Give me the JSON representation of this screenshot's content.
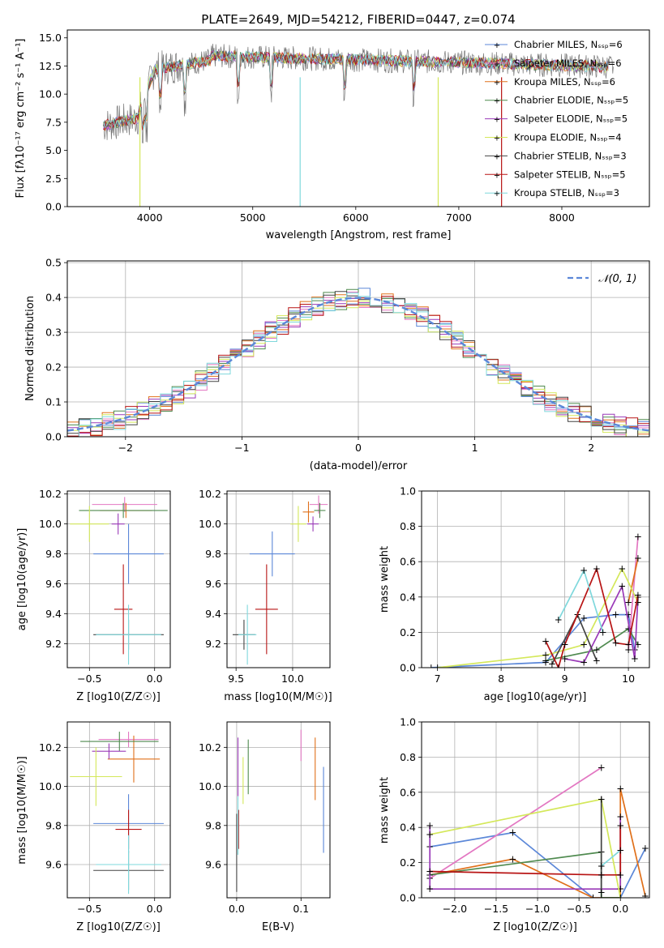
{
  "chart_data": [
    {
      "type": "line",
      "title": "PLATE=2649, MJD=54212, FIBERID=0447, z=0.074",
      "xlabel": "wavelength [Angstrom, rest frame]",
      "ylabel": "Flux [fλ10⁻¹⁷ erg cm⁻² s⁻¹ A⁻¹]",
      "xlim": [
        3200,
        8850
      ],
      "ylim": [
        0,
        15.7
      ],
      "xticks": [
        4000,
        5000,
        6000,
        7000,
        8000
      ],
      "yticks": [
        0.0,
        2.5,
        5.0,
        7.5,
        10.0,
        12.5,
        15.0
      ],
      "grid": false,
      "legend_position": "top-right",
      "series": [
        {
          "name": "Chabrier MILES, N_SSP=6",
          "color": "#5b87d8"
        },
        {
          "name": "Salpeter MILES, N_SSP=6",
          "color": "#e377c2"
        },
        {
          "name": "Kroupa MILES, N_SSP=6",
          "color": "#e0701a"
        },
        {
          "name": "Chabrier ELODIE, N_SSP=5",
          "color": "#4f8a4f"
        },
        {
          "name": "Salpeter ELODIE, N_SSP=5",
          "color": "#9a3ab8"
        },
        {
          "name": "Kroupa ELODIE, N_SSP=4",
          "color": "#d4e85a"
        },
        {
          "name": "Chabrier STELIB, N_SSP=3",
          "color": "#444444"
        },
        {
          "name": "Salpeter STELIB, N_SSP=5",
          "color": "#b81414"
        },
        {
          "name": "Kroupa STELIB, N_SSP=3",
          "color": "#7fd8dc"
        }
      ]
    },
    {
      "type": "line",
      "xlabel": "(data-model)/error",
      "ylabel": "Normed distribution",
      "xlim": [
        -2.5,
        2.5
      ],
      "ylim": [
        0,
        0.505
      ],
      "xticks": [
        -2,
        -1,
        0,
        1,
        2
      ],
      "yticks": [
        0.0,
        0.1,
        0.2,
        0.3,
        0.4,
        0.5
      ],
      "grid": true,
      "legend_position": "top-right",
      "legend": "𝒩(0, 1)",
      "curve": "normal pdf mean 0, sigma 1"
    },
    {
      "type": "scatter",
      "xlabel": "Z [log10(Z/Z☉)]",
      "ylabel": "age [log10(age/yr)]",
      "xlim": [
        -0.67,
        0.12
      ],
      "ylim": [
        9.04,
        10.22
      ],
      "xticks": [
        -0.5,
        0.0
      ],
      "yticks": [
        9.2,
        9.4,
        9.6,
        9.8,
        10.0,
        10.2
      ],
      "grid": true,
      "points": [
        {
          "series": "Chabrier MILES",
          "x": -0.2,
          "y": 9.8,
          "xerr": 0.27,
          "yerr": 0.2
        },
        {
          "series": "Salpeter MILES",
          "x": -0.23,
          "y": 10.13,
          "xerr": 0.25,
          "yerr": 0.05
        },
        {
          "series": "Kroupa MILES",
          "x": -0.22,
          "y": 10.09,
          "xerr": 0.2,
          "yerr": 0.05
        },
        {
          "series": "Chabrier ELODIE",
          "x": -0.24,
          "y": 10.09,
          "xerr": 0.34,
          "yerr": 0.05
        },
        {
          "series": "Salpeter ELODIE",
          "x": -0.28,
          "y": 10.0,
          "xerr": 0.05,
          "yerr": 0.07
        },
        {
          "series": "Kroupa ELODIE",
          "x": -0.5,
          "y": 10.0,
          "xerr": 0.15,
          "yerr": 0.12
        },
        {
          "series": "Chabrier STELIB",
          "x": -0.2,
          "y": 9.26,
          "xerr": 0.27,
          "yerr": 0.1
        },
        {
          "series": "Salpeter STELIB",
          "x": -0.24,
          "y": 9.43,
          "xerr": 0.07,
          "yerr": 0.3
        },
        {
          "series": "Kroupa STELIB",
          "x": -0.2,
          "y": 9.26,
          "xerr": 0.25,
          "yerr": 0.2
        }
      ]
    },
    {
      "type": "scatter",
      "xlabel": "mass [log10(M/M☉)]",
      "xlim": [
        9.42,
        10.33
      ],
      "ylim": [
        9.04,
        10.22
      ],
      "xticks": [
        9.5,
        10.0
      ],
      "yticks": [
        9.2,
        9.4,
        9.6,
        9.8,
        10.0,
        10.2
      ],
      "grid": true,
      "points": [
        {
          "series": "Chabrier MILES",
          "x": 9.82,
          "y": 9.8,
          "xerr": 0.2,
          "yerr": 0.15
        },
        {
          "series": "Salpeter MILES",
          "x": 10.23,
          "y": 10.13,
          "xerr": 0.08,
          "yerr": 0.06
        },
        {
          "series": "Kroupa MILES",
          "x": 10.14,
          "y": 10.08,
          "xerr": 0.05,
          "yerr": 0.07
        },
        {
          "series": "Chabrier ELODIE",
          "x": 10.24,
          "y": 10.09,
          "xerr": 0.05,
          "yerr": 0.05
        },
        {
          "series": "Salpeter ELODIE",
          "x": 10.18,
          "y": 10.0,
          "xerr": 0.05,
          "yerr": 0.05
        },
        {
          "series": "Kroupa ELODIE",
          "x": 10.05,
          "y": 10.0,
          "xerr": 0.07,
          "yerr": 0.12
        },
        {
          "series": "Chabrier STELIB",
          "x": 9.57,
          "y": 9.26,
          "xerr": 0.1,
          "yerr": 0.1
        },
        {
          "series": "Salpeter STELIB",
          "x": 9.77,
          "y": 9.43,
          "xerr": 0.1,
          "yerr": 0.3
        },
        {
          "series": "Kroupa STELIB",
          "x": 9.6,
          "y": 9.26,
          "xerr": 0.08,
          "yerr": 0.2
        }
      ]
    },
    {
      "type": "line",
      "xlabel": "age [log10(age/yr)]",
      "ylabel": "mass weight",
      "xlim": [
        6.75,
        10.33
      ],
      "ylim": [
        0,
        1.0
      ],
      "xticks": [
        7,
        8,
        9,
        10
      ],
      "yticks": [
        0.0,
        0.2,
        0.4,
        0.6,
        0.8,
        1.0
      ],
      "grid": true,
      "series": [
        {
          "name": "Chabrier MILES",
          "x": [
            6.9,
            8.7,
            9.3,
            9.8,
            10.0,
            10.1
          ],
          "y": [
            0.0,
            0.03,
            0.28,
            0.3,
            0.3,
            0.1
          ]
        },
        {
          "name": "Salpeter MILES",
          "x": [
            10.0,
            10.15
          ],
          "y": [
            0.1,
            0.74
          ]
        },
        {
          "name": "Kroupa MILES",
          "x": [
            10.0,
            10.15
          ],
          "y": [
            0.37,
            0.62
          ]
        },
        {
          "name": "Chabrier ELODIE",
          "x": [
            8.7,
            9.5,
            10.0,
            10.15
          ],
          "y": [
            0.04,
            0.1,
            0.22,
            0.13
          ]
        },
        {
          "name": "Salpeter ELODIE",
          "x": [
            9.0,
            9.3,
            9.9,
            10.1,
            10.15
          ],
          "y": [
            0.05,
            0.03,
            0.46,
            0.05,
            0.4
          ]
        },
        {
          "name": "Kroupa ELODIE",
          "x": [
            7.0,
            8.7,
            9.3,
            9.9,
            10.15
          ],
          "y": [
            0.0,
            0.07,
            0.13,
            0.56,
            0.37
          ]
        },
        {
          "name": "Chabrier STELIB",
          "x": [
            8.8,
            9.2,
            9.5
          ],
          "y": [
            0.02,
            0.3,
            0.04
          ]
        },
        {
          "name": "Salpeter STELIB",
          "x": [
            8.7,
            8.9,
            9.0,
            9.5,
            9.8,
            10.0,
            10.15
          ],
          "y": [
            0.15,
            0.0,
            0.13,
            0.56,
            0.14,
            0.13,
            0.41
          ]
        },
        {
          "name": "Kroupa STELIB",
          "x": [
            8.9,
            9.3,
            9.6
          ],
          "y": [
            0.27,
            0.55,
            0.2
          ]
        }
      ]
    },
    {
      "type": "scatter",
      "xlabel": "Z [log10(Z/Z☉)]",
      "ylabel": "mass [log10(M/M☉)]",
      "xlim": [
        -0.67,
        0.12
      ],
      "ylim": [
        9.43,
        10.33
      ],
      "xticks": [
        -0.5,
        0.0
      ],
      "yticks": [
        9.6,
        9.8,
        10.0,
        10.2
      ],
      "grid": true,
      "points": [
        {
          "series": "Chabrier MILES",
          "x": -0.2,
          "y": 9.81,
          "xerr": 0.27,
          "yerr": 0.15
        },
        {
          "series": "Salpeter MILES",
          "x": -0.2,
          "y": 10.24,
          "xerr": 0.23,
          "yerr": 0.04
        },
        {
          "series": "Kroupa MILES",
          "x": -0.16,
          "y": 10.14,
          "xerr": 0.2,
          "yerr": 0.12
        },
        {
          "series": "Chabrier ELODIE",
          "x": -0.27,
          "y": 10.23,
          "xerr": 0.3,
          "yerr": 0.05
        },
        {
          "series": "Salpeter ELODIE",
          "x": -0.35,
          "y": 10.18,
          "xerr": 0.13,
          "yerr": 0.04
        },
        {
          "series": "Kroupa ELODIE",
          "x": -0.45,
          "y": 10.05,
          "xerr": 0.2,
          "yerr": 0.15
        },
        {
          "series": "Chabrier STELIB",
          "x": -0.2,
          "y": 9.57,
          "xerr": 0.27,
          "yerr": 0.1
        },
        {
          "series": "Salpeter STELIB",
          "x": -0.2,
          "y": 9.78,
          "xerr": 0.1,
          "yerr": 0.1
        },
        {
          "series": "Kroupa STELIB",
          "x": -0.2,
          "y": 9.6,
          "xerr": 0.25,
          "yerr": 0.15
        }
      ]
    },
    {
      "type": "scatter",
      "xlabel": "E(B-V)",
      "xlim": [
        -0.015,
        0.145
      ],
      "ylim": [
        9.43,
        10.33
      ],
      "xticks": [
        0.0,
        0.1
      ],
      "yticks": [
        9.6,
        9.8,
        10.0,
        10.2
      ],
      "grid": true,
      "points": [
        {
          "series": "Chabrier MILES",
          "x": 0.135,
          "y": 9.88,
          "yerr": 0.22
        },
        {
          "series": "Salpeter MILES",
          "x": 0.1,
          "y": 10.21,
          "yerr": 0.08
        },
        {
          "series": "Kroupa MILES",
          "x": 0.122,
          "y": 10.09,
          "yerr": 0.16
        },
        {
          "series": "Chabrier ELODIE",
          "x": 0.018,
          "y": 10.1,
          "yerr": 0.14
        },
        {
          "series": "Salpeter ELODIE",
          "x": 0.002,
          "y": 10.1,
          "yerr": 0.15
        },
        {
          "series": "Kroupa ELODIE",
          "x": 0.01,
          "y": 10.03,
          "yerr": 0.12
        },
        {
          "series": "Chabrier STELIB",
          "x": 0.0,
          "y": 9.66,
          "yerr": 0.2
        },
        {
          "series": "Salpeter STELIB",
          "x": 0.003,
          "y": 9.78,
          "yerr": 0.1
        },
        {
          "series": "Kroupa STELIB",
          "x": 0.002,
          "y": 9.8,
          "yerr": 0.15
        }
      ]
    },
    {
      "type": "line",
      "xlabel": "Z [log10(Z/Z☉)]",
      "ylabel": "mass weight",
      "xlim": [
        -2.4,
        0.35
      ],
      "ylim": [
        0,
        1.0
      ],
      "xticks": [
        -2.0,
        -1.5,
        -1.0,
        -0.5,
        0.0
      ],
      "yticks": [
        0.0,
        0.2,
        0.4,
        0.6,
        0.8,
        1.0
      ],
      "grid": true,
      "series": [
        {
          "name": "Chabrier MILES",
          "x": [
            -2.3,
            -1.3,
            -0.33,
            0.0,
            0.3
          ],
          "y": [
            0.29,
            0.37,
            0.0,
            0.0,
            0.28
          ]
        },
        {
          "name": "Salpeter MILES",
          "x": [
            -2.3,
            -0.23
          ],
          "y": [
            0.11,
            0.74
          ]
        },
        {
          "name": "Kroupa MILES",
          "x": [
            -2.3,
            -1.3,
            -0.33,
            0.0,
            0.0,
            0.3
          ],
          "y": [
            0.13,
            0.22,
            0.0,
            0.0,
            0.62,
            0.01
          ]
        },
        {
          "name": "Chabrier ELODIE",
          "x": [
            -2.3,
            -0.23,
            -0.23,
            0.0
          ],
          "y": [
            0.13,
            0.26,
            0.0,
            0.0
          ]
        },
        {
          "name": "Salpeter ELODIE",
          "x": [
            -2.3,
            -2.3,
            0.0,
            0.0
          ],
          "y": [
            0.41,
            0.05,
            0.05,
            0.46
          ]
        },
        {
          "name": "Kroupa ELODIE",
          "x": [
            -2.3,
            -0.23,
            0.0
          ],
          "y": [
            0.36,
            0.56,
            0.0
          ]
        },
        {
          "name": "Chabrier STELIB",
          "x": [
            -0.23,
            -0.23
          ],
          "y": [
            0.56,
            0.03
          ]
        },
        {
          "name": "Salpeter STELIB",
          "x": [
            -2.3,
            -0.23,
            0.0,
            0.0
          ],
          "y": [
            0.15,
            0.13,
            0.13,
            0.41
          ]
        },
        {
          "name": "Kroupa STELIB",
          "x": [
            -0.23,
            0.0
          ],
          "y": [
            0.18,
            0.27
          ]
        }
      ]
    }
  ]
}
